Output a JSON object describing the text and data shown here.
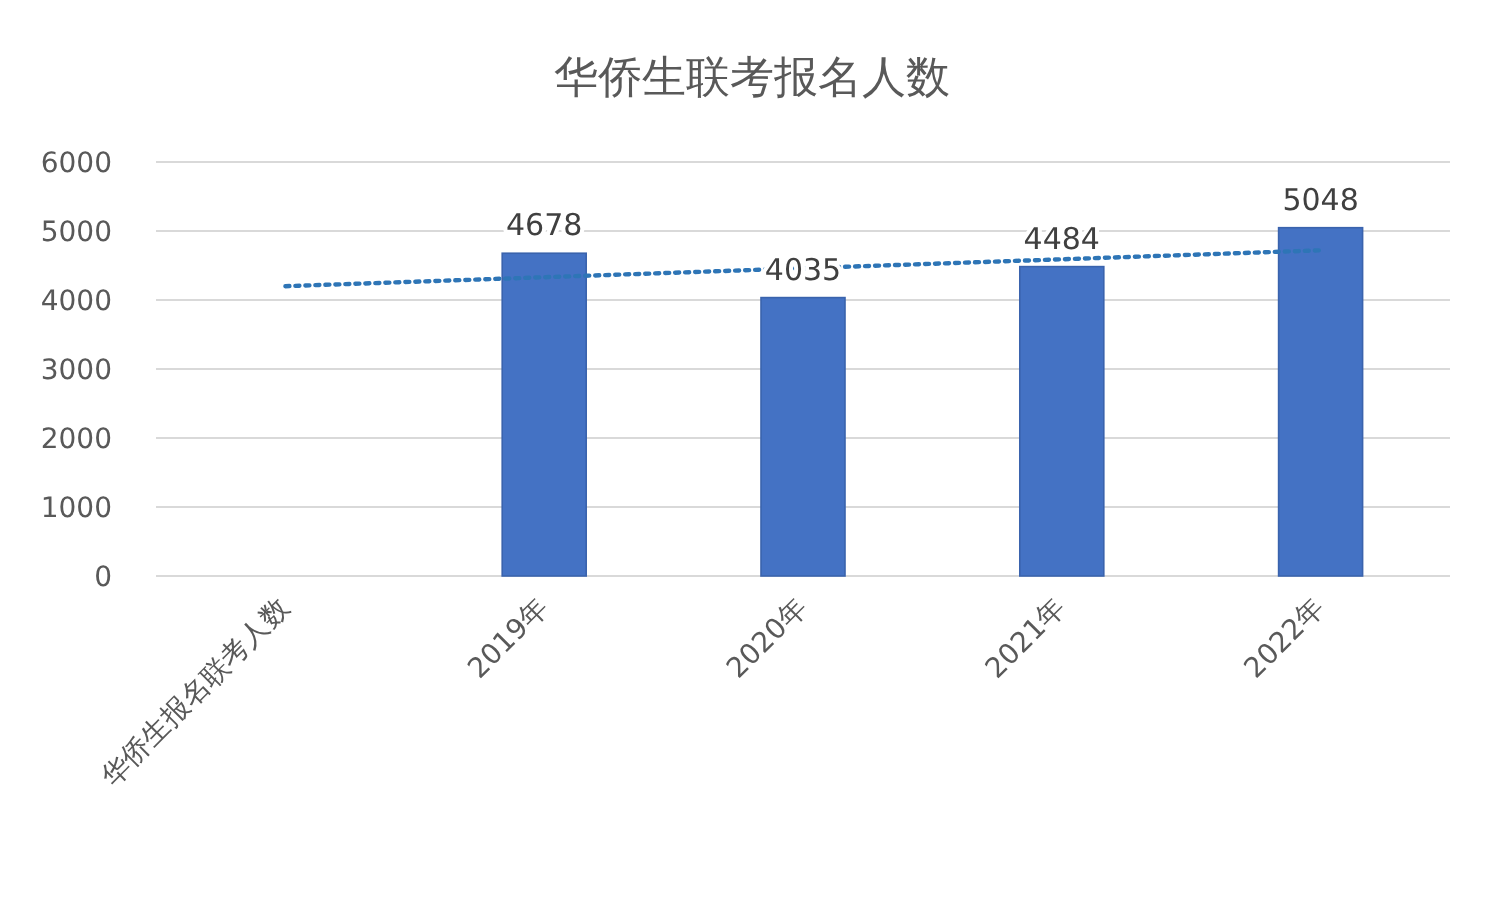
{
  "chart_data": {
    "type": "bar",
    "title": "华侨生联考报名人数",
    "categories": [
      "华侨生报名联考人数",
      "2019年",
      "2020年",
      "2021年",
      "2022年"
    ],
    "series": [
      {
        "color": "#4472c4",
        "values": [
          null,
          4678,
          4035,
          4484,
          5048
        ],
        "value_labels": [
          null,
          "4678",
          "4035",
          "4484",
          "5048"
        ]
      },
      {
        "type": "line",
        "color": "#2e75b6",
        "line_style": "dotted",
        "values": [
          4200,
          4330,
          4460,
          4590,
          4720
        ]
      }
    ],
    "ylim": [
      0,
      6000
    ],
    "yticks": [
      0,
      1000,
      2000,
      3000,
      4000,
      5000,
      6000
    ],
    "grid": "y"
  }
}
